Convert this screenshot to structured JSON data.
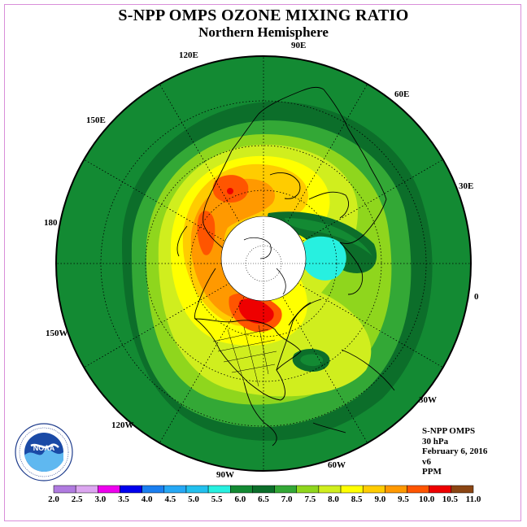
{
  "title": "S-NPP OMPS OZONE MIXING RATIO",
  "subtitle": "Northern Hemisphere",
  "longitude_labels": {
    "lon_90E": "90E",
    "lon_120E": "120E",
    "lon_60E": "60E",
    "lon_150E": "150E",
    "lon_30E": "30E",
    "lon_180": "180",
    "lon_0": "0",
    "lon_150W": "150W",
    "lon_30W": "30W",
    "lon_120W": "120W",
    "lon_60W": "60W",
    "lon_90W": "90W"
  },
  "info": {
    "instrument": "S-NPP OMPS",
    "level": "30 hPa",
    "date": "February 6, 2016",
    "version": "v6",
    "units": "PPM"
  },
  "logo_text": "NOAA",
  "colorbar": {
    "ticks": [
      "2.0",
      "2.5",
      "3.0",
      "3.5",
      "4.0",
      "4.5",
      "5.0",
      "5.5",
      "6.0",
      "6.5",
      "7.0",
      "7.5",
      "8.0",
      "8.5",
      "9.0",
      "9.5",
      "10.0",
      "10.5",
      "11.0"
    ],
    "colors": [
      "#b07be0",
      "#dca6f0",
      "#ee00ee",
      "#0000ee",
      "#1a7ff0",
      "#26a8f5",
      "#22c0ee",
      "#27f0e0",
      "#138a33",
      "#0c6e2a",
      "#33a836",
      "#8fd61d",
      "#d0ee1e",
      "#ffff00",
      "#ffcc00",
      "#ff9900",
      "#ff5500",
      "#ee0000",
      "#8b4513"
    ]
  },
  "legend_colors": {
    "land_outline": "#000000",
    "missing_data": "#ffffff",
    "frame": "#d98fd9"
  }
}
